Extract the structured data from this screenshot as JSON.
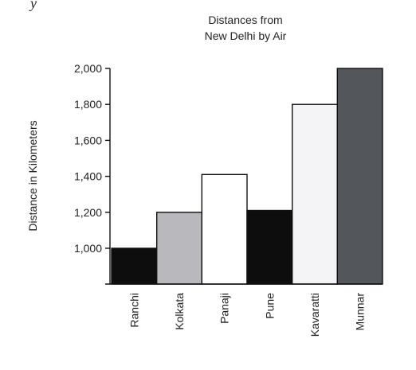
{
  "corner_mark": "y",
  "chart_data": {
    "type": "bar",
    "title_lines": [
      "Distances from",
      "New Delhi by Air"
    ],
    "xlabel": "",
    "ylabel": "Distance in Kilometers",
    "categories": [
      "Ranchi",
      "Kolkata",
      "Panaji",
      "Pune",
      "Kavaratti",
      "Munnar"
    ],
    "values": [
      1000,
      1200,
      1410,
      1210,
      1800,
      2000
    ],
    "bar_colors": [
      "#0d0d0d",
      "#b9b9bd",
      "#ffffff",
      "#0d0d0d",
      "#f4f4f7",
      "#53575b"
    ],
    "yticks": [
      1000,
      1200,
      1400,
      1600,
      1800,
      2000
    ],
    "ytick_labels": [
      "1,000",
      "1,200",
      "1,400",
      "1,600",
      "1,800",
      "2,000"
    ],
    "ylim": [
      800,
      2000
    ],
    "grid": false,
    "legend": "none"
  }
}
